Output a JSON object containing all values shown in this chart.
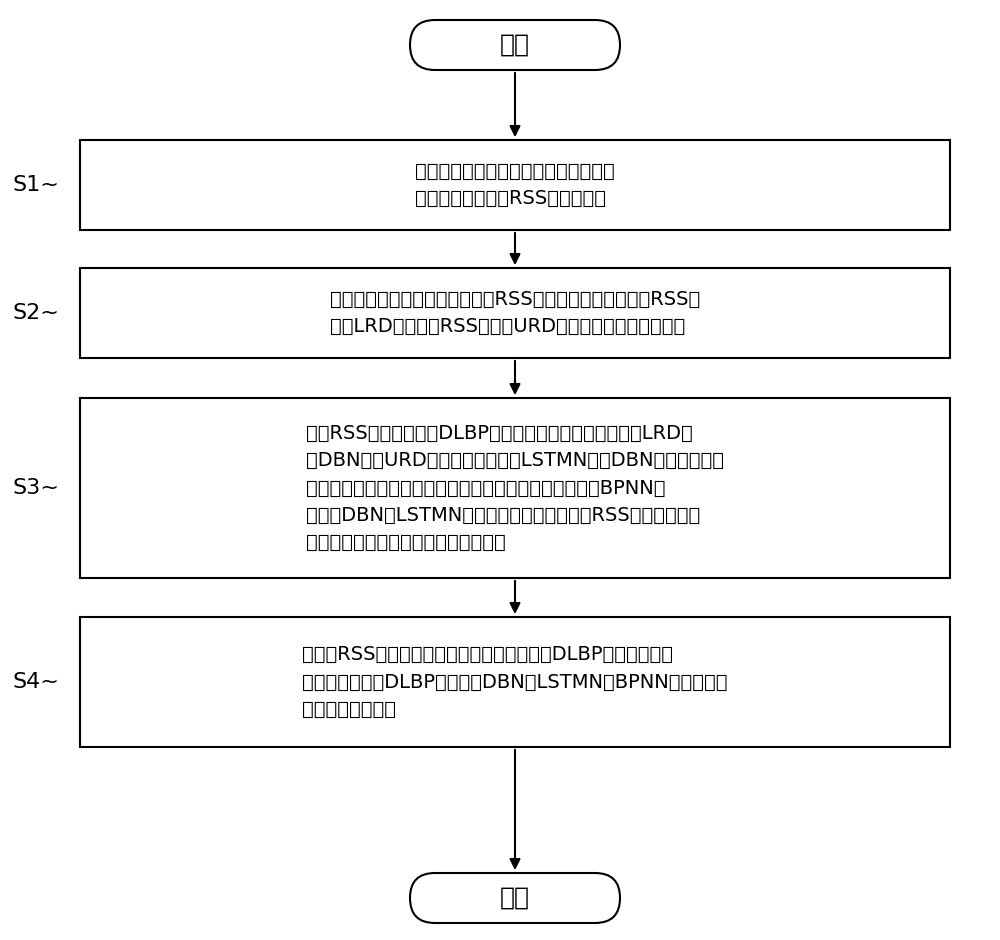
{
  "bg_color": "#ffffff",
  "box_color": "#ffffff",
  "box_edge_color": "#000000",
  "arrow_color": "#000000",
  "text_color": "#000000",
  "font_size": 14,
  "label_font_size": 16,
  "title": "开始",
  "end_title": "结束",
  "steps": [
    {
      "label": "S1",
      "text": "构建分布式大规模多天线系统，根据其\n室内衍射模型生成RSS训练数据集"
    },
    {
      "label": "S2",
      "text": "以是否包含位置信息为依据，将RSS训练数据集分为已标记RSS数\n据集LRD和未标记RSS数据集URD，并按时间顺序进行排序"
    },
    {
      "label": "S3",
      "text": "通过RSS训练数据集对DLBP模型进行训练，具体为：利用LRD训\n练DBN估计URD对应的位置信息；LSTMN利用DBN估计结果和少\n量位置样本构成的历史轨迹信息，对当前位置进行估计；BPNN通\n过融合DBN和LSTMN的估计结果，实现对衍射RSS对应的位置信\n息和移动轨迹中包含的位置信息的融合"
    },
    {
      "label": "S4",
      "text": "将不同RSS向量作为测试数据集对训练完成的DLBP模型进行测试\n，通过逐步激活DLBP模型中的DBN、LSTMN和BPNN，实现多网\n络lRSS高精度三维定位"
    }
  ]
}
